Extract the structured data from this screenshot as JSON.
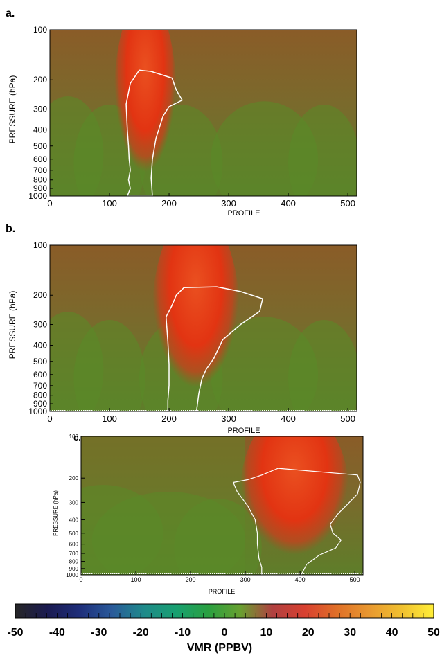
{
  "chart_data": [
    {
      "panel": "a.",
      "type": "heatmap",
      "xlabel": "PROFILE",
      "ylabel": "PRESSURE (hPa)",
      "x_ticks": [
        0,
        100,
        200,
        300,
        400,
        500
      ],
      "y_ticks": [
        100,
        200,
        300,
        400,
        500,
        600,
        700,
        800,
        900,
        1000
      ],
      "xlim": [
        0,
        515
      ],
      "ylim": [
        1000,
        100
      ],
      "y_scale": "log",
      "plume": {
        "center_profile": 160,
        "width_profile": 50,
        "top_hPa": 100,
        "peak_vmr": 18
      },
      "contour_outline": [
        [
          130,
          1000
        ],
        [
          135,
          900
        ],
        [
          132,
          800
        ],
        [
          135,
          700
        ],
        [
          133,
          600
        ],
        [
          132,
          500
        ],
        [
          130,
          400
        ],
        [
          128,
          280
        ],
        [
          135,
          210
        ],
        [
          150,
          175
        ],
        [
          170,
          178
        ],
        [
          205,
          195
        ],
        [
          212,
          230
        ],
        [
          222,
          265
        ],
        [
          200,
          290
        ],
        [
          190,
          330
        ],
        [
          178,
          450
        ],
        [
          172,
          600
        ],
        [
          170,
          780
        ],
        [
          172,
          1000
        ]
      ]
    },
    {
      "panel": "b.",
      "type": "heatmap",
      "xlabel": "PROFILE",
      "ylabel": "PRESSURE (hPa)",
      "x_ticks": [
        0,
        100,
        200,
        300,
        400,
        500
      ],
      "y_ticks": [
        100,
        200,
        300,
        400,
        500,
        600,
        700,
        800,
        900,
        1000
      ],
      "xlim": [
        0,
        515
      ],
      "ylim": [
        1000,
        100
      ],
      "y_scale": "log",
      "plume": {
        "center_profile": 245,
        "width_profile": 70,
        "top_hPa": 100,
        "peak_vmr": 22
      },
      "contour_outline": [
        [
          198,
          1000
        ],
        [
          198,
          860
        ],
        [
          200,
          700
        ],
        [
          200,
          520
        ],
        [
          198,
          380
        ],
        [
          195,
          270
        ],
        [
          205,
          230
        ],
        [
          212,
          200
        ],
        [
          225,
          180
        ],
        [
          280,
          178
        ],
        [
          320,
          190
        ],
        [
          357,
          210
        ],
        [
          352,
          250
        ],
        [
          320,
          300
        ],
        [
          290,
          370
        ],
        [
          275,
          480
        ],
        [
          262,
          560
        ],
        [
          255,
          640
        ],
        [
          250,
          780
        ],
        [
          246,
          1000
        ]
      ]
    },
    {
      "panel": "c.",
      "type": "heatmap",
      "xlabel": "PROFILE",
      "ylabel": "PRESSURE (hPa)",
      "x_ticks": [
        0,
        100,
        200,
        300,
        400,
        500
      ],
      "y_ticks": [
        100,
        200,
        300,
        400,
        500,
        600,
        700,
        800,
        900,
        1000
      ],
      "xlim": [
        0,
        515
      ],
      "ylim": [
        1000,
        100
      ],
      "y_scale": "log",
      "plume": {
        "center_profile": 390,
        "width_profile": 95,
        "top_hPa": 100,
        "peak_vmr": 24
      },
      "contour_outline": [
        [
          330,
          1000
        ],
        [
          330,
          880
        ],
        [
          325,
          760
        ],
        [
          322,
          600
        ],
        [
          322,
          500
        ],
        [
          318,
          400
        ],
        [
          305,
          320
        ],
        [
          285,
          250
        ],
        [
          278,
          215
        ],
        [
          305,
          205
        ],
        [
          330,
          190
        ],
        [
          360,
          170
        ],
        [
          505,
          190
        ],
        [
          510,
          215
        ],
        [
          505,
          260
        ],
        [
          490,
          300
        ],
        [
          470,
          360
        ],
        [
          455,
          430
        ],
        [
          460,
          500
        ],
        [
          475,
          560
        ],
        [
          465,
          640
        ],
        [
          435,
          720
        ],
        [
          412,
          840
        ],
        [
          402,
          1000
        ]
      ]
    }
  ],
  "colorbar": {
    "label": "VMR (PPBV)",
    "ticks": [
      "-50",
      "-40",
      "-30",
      "-20",
      "-10",
      "0",
      "10",
      "20",
      "30",
      "40",
      "50"
    ],
    "min": -50,
    "max": 50,
    "colors": [
      "#262626",
      "#1a1a50",
      "#1e2e7a",
      "#2a5a9a",
      "#1e8a8a",
      "#18a070",
      "#2aa040",
      "#68a030",
      "#b04040",
      "#d84030",
      "#e07028",
      "#e89830",
      "#f0c030",
      "#ffee38"
    ]
  },
  "field_colors": {
    "background": "#7a6a30",
    "green": "#5a8a28",
    "plume": "#e03a10",
    "contour": "#ffffff"
  }
}
